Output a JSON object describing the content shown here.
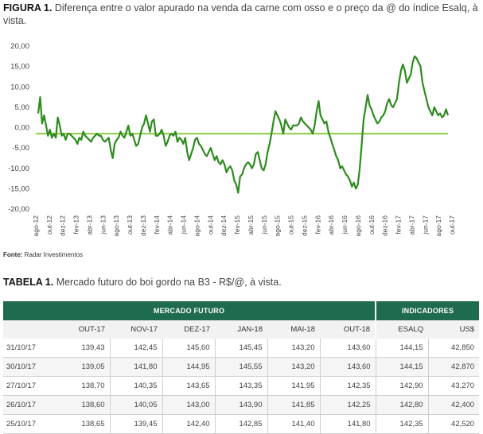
{
  "figure": {
    "label": "FIGURA 1.",
    "title": "Diferença entre o valor apurado na venda da carne com osso e o preço da @ do índice Esalq, à vista."
  },
  "source": {
    "label": "Fonte:",
    "text": "Radar Investimentos"
  },
  "table_caption": {
    "label": "TABELA 1.",
    "title": "Mercado futuro do boi gordo na B3 - R$/@, à vista."
  },
  "colors": {
    "series": "#2e8b1f",
    "reference": "#8fce4a",
    "header": "#1e6b4d"
  },
  "chart_data": {
    "type": "line",
    "title": "",
    "xlabel": "",
    "ylabel": "",
    "ylim": [
      -20,
      20
    ],
    "yticks": [
      "20,00",
      "15,00",
      "10,00",
      "5,00",
      "0,00",
      "-5,00",
      "-10,00",
      "-15,00",
      "-20,00"
    ],
    "xticks": [
      "ago-12",
      "out-12",
      "dez-12",
      "fev-13",
      "abr-13",
      "jun-13",
      "ago-13",
      "out-13",
      "dez-13",
      "fev-14",
      "abr-14",
      "jun-14",
      "ago-14",
      "out-14",
      "dez-14",
      "fev-15",
      "abr-15",
      "jun-15",
      "ago-15",
      "out-15",
      "dez-15",
      "fev-16",
      "abr-16",
      "jun-16",
      "ago-16",
      "out-16",
      "dez-16",
      "fev-17",
      "abr-17",
      "jun-17",
      "ago-17",
      "out-17"
    ],
    "reference_line": -1.5,
    "grid": false,
    "series": [
      {
        "values": [
          3.5,
          7.5,
          1,
          3,
          0.5,
          -2,
          -0.5,
          -2.5,
          -1.5,
          -2.5,
          2.5,
          0.5,
          -2,
          -1.5,
          -3,
          -1.5,
          -1.5,
          -2,
          -2.5,
          -3,
          -4,
          -2.5,
          -3,
          -1,
          -2,
          -2.5,
          -3,
          -3.5,
          -2.5,
          -2,
          -1.5,
          -2,
          -2,
          -3,
          -3.5,
          -3,
          -2.5,
          -5.5,
          -7.5,
          -4,
          -3,
          -2.5,
          -1,
          -2,
          -2.5,
          -1,
          0.5,
          -2,
          -1.5,
          -3,
          -4.5,
          -4,
          -2,
          0,
          1,
          3,
          1,
          -1,
          1.5,
          2,
          -2,
          -2,
          -1.5,
          -0.5,
          -2,
          -4.5,
          -3.5,
          -2,
          -1.5,
          -2,
          -1,
          -3.5,
          -2.5,
          -3,
          -4,
          -2.5,
          -6,
          -8,
          -6.5,
          -5,
          -3,
          -2.5,
          -4,
          -4.5,
          -5.5,
          -6.5,
          -7,
          -6,
          -5,
          -6.5,
          -8,
          -7,
          -8.5,
          -9,
          -8,
          -9,
          -11,
          -10,
          -9.5,
          -10.5,
          -13,
          -14,
          -16,
          -12,
          -11.5,
          -10,
          -9,
          -8.5,
          -9,
          -10,
          -9,
          -6.5,
          -6,
          -8,
          -10,
          -10.5,
          -9,
          -6,
          -4,
          -1.5,
          1.5,
          4,
          3,
          2,
          0.5,
          -1.5,
          2,
          1,
          0,
          -0.5,
          0.5,
          0.5,
          0.5,
          1,
          2.5,
          1.5,
          1,
          0.5,
          0,
          -0.5,
          -1.5,
          0.5,
          4,
          6.5,
          3,
          2,
          1,
          1.5,
          -1,
          -2.5,
          -4,
          -5.5,
          -7,
          -8,
          -10,
          -9.5,
          -10.5,
          -11.5,
          -12,
          -13,
          -14.5,
          -13.5,
          -15,
          -14,
          -10,
          -4,
          2,
          5,
          8,
          5.5,
          4.5,
          3,
          2,
          1,
          1.5,
          2.5,
          3,
          4,
          6,
          7,
          5.5,
          5,
          6,
          7,
          11,
          14,
          15.5,
          14,
          11,
          12,
          13,
          16,
          17.5,
          17,
          16,
          15,
          11,
          9,
          7,
          5,
          4,
          3,
          5,
          4,
          3,
          3.5,
          2.5,
          3,
          4.5,
          3
        ]
      }
    ]
  },
  "table": {
    "group_headers": [
      "MERCADO FUTURO",
      "INDICADORES"
    ],
    "columns": [
      "",
      "OUT-17",
      "NOV-17",
      "DEZ-17",
      "JAN-18",
      "MAI-18",
      "OUT-18",
      "ESALQ",
      "US$"
    ],
    "rows": [
      [
        "31/10/17",
        "139,43",
        "142,45",
        "145,60",
        "145,45",
        "143,20",
        "143,60",
        "144,15",
        "42,850"
      ],
      [
        "30/10/17",
        "139,05",
        "141,80",
        "144,95",
        "145,55",
        "143,20",
        "143,60",
        "144,15",
        "42,870"
      ],
      [
        "27/10/17",
        "138,70",
        "140,35",
        "143,65",
        "143,35",
        "141,95",
        "142,35",
        "142,90",
        "43,270"
      ],
      [
        "26/10/17",
        "138,60",
        "140,05",
        "143,00",
        "143,90",
        "141,85",
        "142,25",
        "142,80",
        "42,400"
      ],
      [
        "25/10/17",
        "138,65",
        "139,45",
        "142,40",
        "142,85",
        "141,40",
        "141,80",
        "142,35",
        "42,520"
      ]
    ]
  }
}
